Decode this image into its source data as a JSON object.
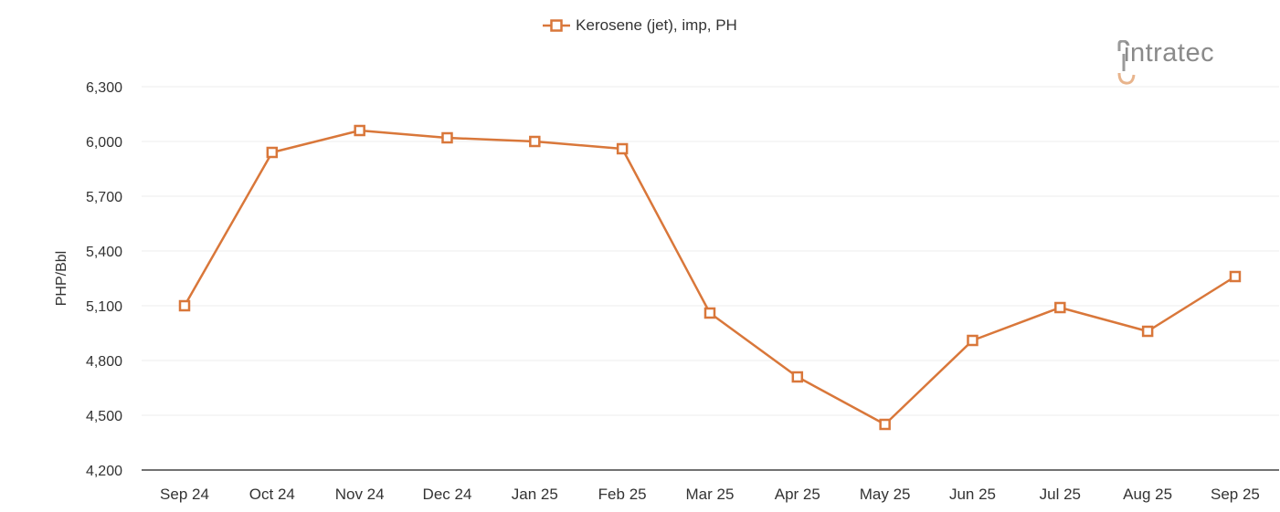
{
  "brand": {
    "logo_text": "intratec"
  },
  "colors": {
    "series": "#d9773a",
    "grid": "#eeeeee",
    "axis": "#444444"
  },
  "chart_data": {
    "type": "line",
    "categories": [
      "Sep 24",
      "Oct 24",
      "Nov 24",
      "Dec 24",
      "Jan 25",
      "Feb 25",
      "Mar 25",
      "Apr 25",
      "May 25",
      "Jun 25",
      "Jul 25",
      "Aug 25",
      "Sep 25"
    ],
    "series": [
      {
        "name": "Kerosene (jet), imp, PH",
        "values": [
          5100,
          5940,
          6060,
          6020,
          6000,
          5960,
          5060,
          4710,
          4450,
          4910,
          5090,
          4960,
          5260
        ]
      }
    ],
    "ylabel": "PHP/Bbl",
    "xlabel": "",
    "ylim": [
      4200,
      6300
    ],
    "yticks": [
      4200,
      4500,
      4800,
      5100,
      5400,
      5700,
      6000,
      6300
    ],
    "ytick_labels": [
      "4,200",
      "4,500",
      "4,800",
      "5,100",
      "5,400",
      "5,700",
      "6,000",
      "6,300"
    ],
    "marker": "hollow-square",
    "grid": true,
    "legend": "top-center"
  }
}
